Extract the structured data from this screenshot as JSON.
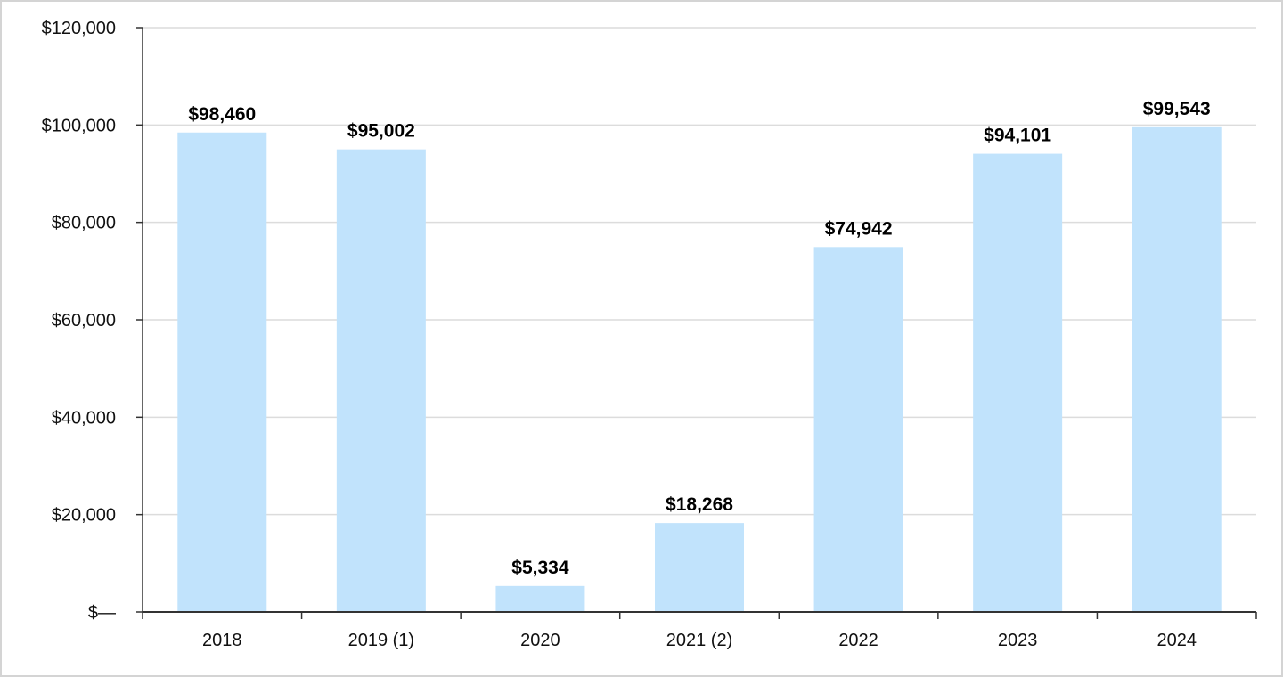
{
  "chart_data": {
    "type": "bar",
    "categories": [
      "2018",
      "2019 (1)",
      "2020",
      "2021 (2)",
      "2022",
      "2023",
      "2024"
    ],
    "values": [
      98460,
      95002,
      5334,
      18268,
      74942,
      94101,
      99543
    ],
    "data_labels": [
      "$98,460",
      "$95,002",
      "$5,334",
      "$18,268",
      "$74,942",
      "$94,101",
      "$99,543"
    ],
    "y_ticks": [
      0,
      20000,
      40000,
      60000,
      80000,
      100000,
      120000
    ],
    "y_tick_labels": [
      "$—",
      "$20,000",
      "$40,000",
      "$60,000",
      "$80,000",
      "$100,000",
      "$120,000"
    ],
    "ylim": [
      0,
      120000
    ],
    "grid": true,
    "legend": "none",
    "colors": {
      "bar": "#c1e3fc",
      "grid": "#dcdcdc",
      "axis": "#333333",
      "text": "#111111"
    }
  }
}
